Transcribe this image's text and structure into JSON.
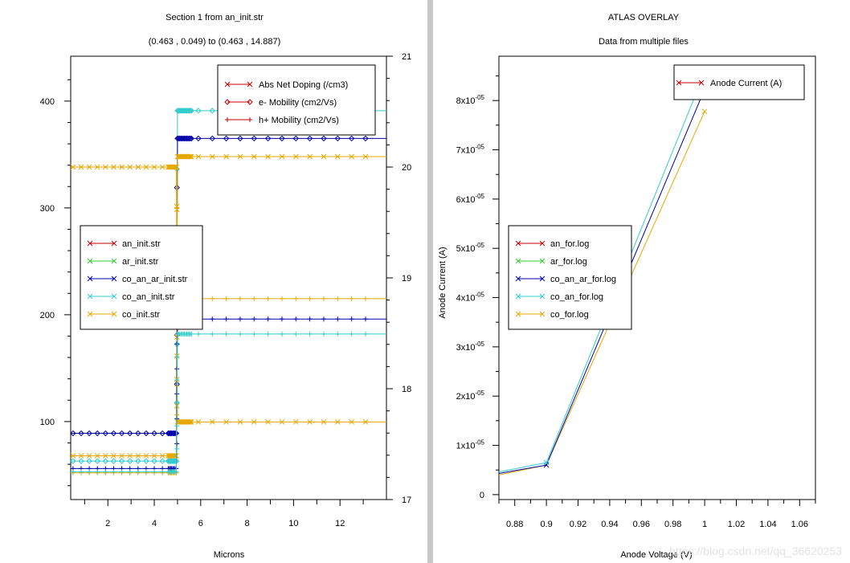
{
  "watermark": "https://blog.csdn.net/qq_36620253",
  "chart_data": [
    {
      "type": "line",
      "title": "Section 1 from an_init.str",
      "subtitle": "(0.463 , 0.049) to (0.463 , 14.887)",
      "xlabel": "Microns",
      "xlim": [
        0.4,
        14.0
      ],
      "xticks": [
        2,
        4,
        6,
        8,
        10,
        12
      ],
      "ylim": [
        27,
        442
      ],
      "yticks": [
        100,
        200,
        300,
        400
      ],
      "y2lim": [
        17,
        21
      ],
      "y2ticks": [
        17,
        18,
        19,
        20,
        21
      ],
      "grid": false,
      "legend_quantities": {
        "placement": "top-right",
        "entries": [
          {
            "label": "Abs Net Doping (/cm3)",
            "marker": "x",
            "color": "#c00000"
          },
          {
            "label": "e- Mobility (cm2/Vs)",
            "marker": "diamond",
            "color": "#c00000"
          },
          {
            "label": "h+ Mobility (cm2/Vs)",
            "marker": "plus",
            "color": "#c00000"
          }
        ]
      },
      "legend_files": {
        "placement": "middle-left",
        "entries": [
          {
            "label": "an_init.str",
            "color": "#c00000"
          },
          {
            "label": "ar_init.str",
            "color": "#33cc33"
          },
          {
            "label": "co_an_ar_init.str",
            "color": "#0000aa"
          },
          {
            "label": "co_an_init.str",
            "color": "#33cccc"
          },
          {
            "label": "co_init.str",
            "color": "#e6a800"
          }
        ]
      },
      "series": [
        {
          "file": "co_an_init.str",
          "quantity": "e- Mobility (cm2/Vs)",
          "marker": "diamond",
          "color": "#33cccc",
          "axis": "left",
          "x": [
            0.4,
            4.95,
            5.0,
            14.0
          ],
          "y": [
            63,
            63,
            391,
            391
          ]
        },
        {
          "file": "co_an_ar_init.str",
          "quantity": "e- Mobility (cm2/Vs)",
          "marker": "diamond",
          "color": "#0000aa",
          "axis": "left",
          "x": [
            0.4,
            4.95,
            5.0,
            14.0
          ],
          "y": [
            89,
            89,
            365,
            365
          ]
        },
        {
          "file": "co_init.str",
          "quantity": "e- Mobility (cm2/Vs)",
          "marker": "x",
          "color": "#e6a800",
          "axis": "left",
          "x": [
            0.4,
            4.95,
            5.0,
            14.0
          ],
          "y": [
            68,
            68,
            348,
            348
          ]
        },
        {
          "file": "co_init.str",
          "quantity": "Abs Net Doping (/cm3)",
          "marker": "x",
          "color": "#e6a800",
          "axis": "right",
          "x": [
            0.4,
            4.95,
            5.0,
            14.0
          ],
          "y": [
            20.0,
            20.0,
            17.7,
            17.7
          ]
        },
        {
          "file": "co_init.str",
          "quantity": "h+ Mobility (cm2/Vs)",
          "marker": "plus",
          "color": "#e6a800",
          "axis": "left",
          "x": [
            0.4,
            4.95,
            5.0,
            14.0
          ],
          "y": [
            52,
            52,
            215,
            215
          ]
        },
        {
          "file": "co_an_ar_init.str",
          "quantity": "h+ Mobility (cm2/Vs)",
          "marker": "plus",
          "color": "#0000aa",
          "axis": "left",
          "x": [
            0.4,
            4.95,
            5.0,
            14.0
          ],
          "y": [
            56,
            56,
            196,
            196
          ]
        },
        {
          "file": "co_an_init.str",
          "quantity": "h+ Mobility (cm2/Vs)",
          "marker": "plus",
          "color": "#33cccc",
          "axis": "left",
          "x": [
            0.4,
            4.95,
            5.0,
            14.0
          ],
          "y": [
            53,
            53,
            182,
            182
          ]
        }
      ]
    },
    {
      "type": "line",
      "title": "ATLAS OVERLAY",
      "subtitle": "Data from multiple files",
      "xlabel": "Anode Voltage (V)",
      "ylabel": "Anode Current (A)",
      "xlim": [
        0.87,
        1.07
      ],
      "xticks": [
        0.88,
        0.9,
        0.92,
        0.94,
        0.96,
        0.98,
        1,
        1.02,
        1.04,
        1.06
      ],
      "ylim": [
        -1e-06,
        8.9e-05
      ],
      "yticks": [
        0,
        1e-05,
        2e-05,
        3e-05,
        4e-05,
        5e-05,
        6e-05,
        7e-05,
        8e-05
      ],
      "ytick_labels": [
        {
          "m": "0",
          "e": ""
        },
        {
          "m": "1x10",
          "e": "-05"
        },
        {
          "m": "2x10",
          "e": "-05"
        },
        {
          "m": "3x10",
          "e": "-05"
        },
        {
          "m": "4x10",
          "e": "-05"
        },
        {
          "m": "5x10",
          "e": "-05"
        },
        {
          "m": "6x10",
          "e": "-05"
        },
        {
          "m": "7x10",
          "e": "-05"
        },
        {
          "m": "8x10",
          "e": "-05"
        }
      ],
      "grid": false,
      "legend_quantities": {
        "placement": "top-right",
        "entries": [
          {
            "label": "Anode Current (A)",
            "marker": "x",
            "color": "#c00000"
          }
        ]
      },
      "legend_files": {
        "placement": "middle-left",
        "entries": [
          {
            "label": "an_for.log",
            "color": "#c00000"
          },
          {
            "label": "ar_for.log",
            "color": "#33cc33"
          },
          {
            "label": "co_an_ar_for.log",
            "color": "#0000aa"
          },
          {
            "label": "co_an_for.log",
            "color": "#33cccc"
          },
          {
            "label": "co_for.log",
            "color": "#e6a800"
          }
        ]
      },
      "series": [
        {
          "file": "co_for.log",
          "color": "#e6a800",
          "x": [
            0.87,
            0.9,
            1.0
          ],
          "y": [
            4e-06,
            6e-06,
            7.78e-05
          ]
        },
        {
          "file": "co_an_ar_for.log",
          "color": "#0000aa",
          "x": [
            0.87,
            0.9,
            1.0
          ],
          "y": [
            4.3e-06,
            6e-06,
            8.23e-05
          ]
        },
        {
          "file": "co_an_for.log",
          "color": "#33cccc",
          "x": [
            0.87,
            0.9,
            1.0
          ],
          "y": [
            4.6e-06,
            6.5e-06,
            8.57e-05
          ]
        }
      ]
    }
  ]
}
